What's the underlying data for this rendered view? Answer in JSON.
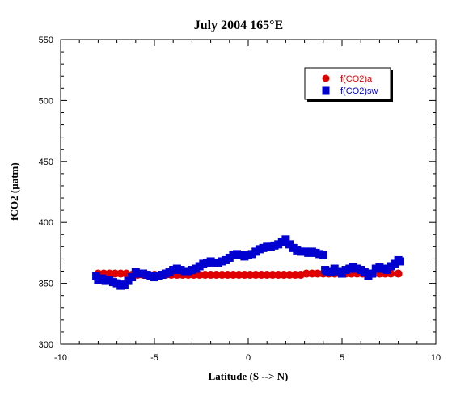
{
  "chart_data": {
    "type": "scatter",
    "title": "July 2004 165°E",
    "xlabel": "Latitude (S --> N)",
    "ylabel": "fCO2 (µatm)",
    "xlim": [
      -10,
      10
    ],
    "ylim": [
      300,
      550
    ],
    "x_ticks": [
      -10,
      -5,
      0,
      5,
      10
    ],
    "y_ticks": [
      300,
      350,
      400,
      450,
      500,
      550
    ],
    "grid": false,
    "legend_position": "top-right",
    "series": [
      {
        "name": "f(CO2)a",
        "color": "#e00000",
        "marker": "circle",
        "x": [
          -8.0,
          -7.7,
          -7.4,
          -7.1,
          -6.8,
          -6.5,
          -6.2,
          -5.9,
          -5.6,
          -5.3,
          -5.0,
          -4.7,
          -4.4,
          -4.1,
          -3.8,
          -3.5,
          -3.2,
          -2.9,
          -2.6,
          -2.3,
          -2.0,
          -1.7,
          -1.4,
          -1.1,
          -0.8,
          -0.5,
          -0.2,
          0.1,
          0.4,
          0.7,
          1.0,
          1.3,
          1.6,
          1.9,
          2.2,
          2.5,
          2.8,
          3.1,
          3.4,
          3.7,
          4.0,
          4.3,
          4.6,
          4.9,
          5.2,
          5.5,
          5.8,
          6.1,
          6.4,
          6.7,
          7.0,
          7.3,
          7.6,
          8.0
        ],
        "y": [
          358,
          358,
          358,
          358,
          358,
          358,
          357,
          357,
          357,
          357,
          357,
          357,
          357,
          357,
          357,
          357,
          357,
          357,
          357,
          357,
          357,
          357,
          357,
          357,
          357,
          357,
          357,
          357,
          357,
          357,
          357,
          357,
          357,
          357,
          357,
          357,
          357,
          358,
          358,
          358,
          358,
          358,
          358,
          358,
          358,
          358,
          358,
          358,
          358,
          358,
          358,
          358,
          358,
          358
        ]
      },
      {
        "name": "f(CO2)sw",
        "color": "#0000d0",
        "marker": "square",
        "x": [
          -8.1,
          -8.0,
          -7.8,
          -7.6,
          -7.4,
          -7.2,
          -7.0,
          -6.8,
          -6.6,
          -6.4,
          -6.2,
          -6.0,
          -5.8,
          -5.6,
          -5.4,
          -5.2,
          -5.0,
          -4.8,
          -4.6,
          -4.4,
          -4.2,
          -4.0,
          -3.8,
          -3.6,
          -3.4,
          -3.2,
          -3.0,
          -2.8,
          -2.6,
          -2.4,
          -2.2,
          -2.0,
          -1.8,
          -1.6,
          -1.4,
          -1.2,
          -1.0,
          -0.8,
          -0.6,
          -0.4,
          -0.2,
          0.0,
          0.2,
          0.4,
          0.6,
          0.8,
          1.0,
          1.2,
          1.4,
          1.6,
          1.8,
          2.0,
          2.2,
          2.4,
          2.6,
          2.8,
          3.0,
          3.2,
          3.4,
          3.6,
          3.8,
          4.0,
          4.1,
          4.2,
          4.4,
          4.6,
          4.8,
          5.0,
          5.2,
          5.4,
          5.6,
          5.8,
          6.0,
          6.2,
          6.4,
          6.6,
          6.8,
          7.0,
          7.2,
          7.4,
          7.6,
          7.8,
          8.0,
          8.1
        ],
        "y": [
          356,
          353,
          354,
          352,
          353,
          351,
          350,
          348,
          349,
          352,
          355,
          359,
          358,
          358,
          357,
          356,
          355,
          356,
          357,
          358,
          359,
          361,
          362,
          361,
          360,
          360,
          361,
          362,
          364,
          366,
          367,
          368,
          367,
          367,
          368,
          369,
          371,
          373,
          374,
          373,
          372,
          373,
          374,
          376,
          378,
          379,
          380,
          380,
          381,
          382,
          384,
          386,
          382,
          379,
          377,
          376,
          376,
          375,
          376,
          375,
          374,
          373,
          361,
          360,
          359,
          362,
          360,
          358,
          361,
          362,
          363,
          362,
          361,
          359,
          356,
          358,
          362,
          363,
          362,
          361,
          364,
          366,
          369,
          368
        ]
      }
    ]
  }
}
